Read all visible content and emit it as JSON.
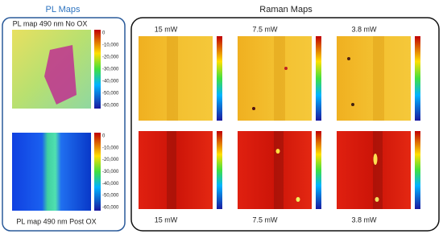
{
  "pl_panel": {
    "title": "PL Maps",
    "maps": [
      {
        "caption": "PL map 490 nm No OX"
      },
      {
        "caption": "PL map 490 nm Post OX"
      }
    ],
    "colorbar_labels": [
      "0",
      "-10,000",
      "-20,000",
      "-30,000",
      "-40,000",
      "-50,000",
      "-60,000"
    ]
  },
  "raman_panel": {
    "title": "Raman Maps",
    "top_captions": [
      "15 mW",
      "7.5 mW",
      "3.8 mW"
    ],
    "bottom_captions": [
      "15 mW",
      "7.5 mW",
      "3.8 mW"
    ]
  }
}
